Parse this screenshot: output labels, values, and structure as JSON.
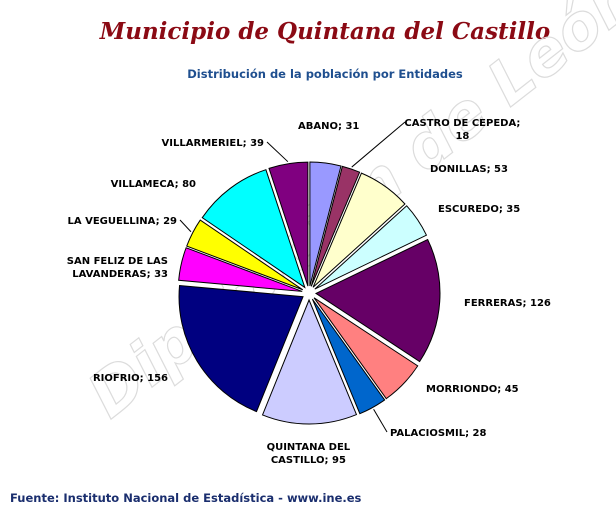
{
  "page": {
    "title": "Municipio de Quintana del Castillo",
    "subtitle": "Distribución de la población por Entidades",
    "source": "Fuente: Instituto Nacional de Estadística - www.ine.es",
    "watermark": "Diputación de León"
  },
  "chart_data": {
    "type": "pie",
    "title": "Distribución de la población por Entidades",
    "start_angle_deg": 0,
    "direction": "clockwise",
    "slices": [
      {
        "label_lines": [
          "ABANO; 31"
        ],
        "name": "ABANO",
        "value": 31,
        "color": "#9999ff"
      },
      {
        "label_lines": [
          "CASTRO DE CEPEDA;",
          "18"
        ],
        "name": "CASTRO DE CEPEDA",
        "value": 18,
        "color": "#993366"
      },
      {
        "label_lines": [
          "DONILLAS; 53"
        ],
        "name": "DONILLAS",
        "value": 53,
        "color": "#ffffcc"
      },
      {
        "label_lines": [
          "ESCUREDO; 35"
        ],
        "name": "ESCUREDO",
        "value": 35,
        "color": "#ccffff"
      },
      {
        "label_lines": [
          "FERRERAS; 126"
        ],
        "name": "FERRERAS",
        "value": 126,
        "color": "#660066"
      },
      {
        "label_lines": [
          "MORRIONDO; 45"
        ],
        "name": "MORRIONDO",
        "value": 45,
        "color": "#ff8080"
      },
      {
        "label_lines": [
          "PALACIOSMIL; 28"
        ],
        "name": "PALACIOSMIL",
        "value": 28,
        "color": "#0066cc"
      },
      {
        "label_lines": [
          "QUINTANA DEL",
          "CASTILLO; 95"
        ],
        "name": "QUINTANA DEL CASTILLO",
        "value": 95,
        "color": "#ccccff"
      },
      {
        "label_lines": [
          "RIOFRIO; 156"
        ],
        "name": "RIOFRIO",
        "value": 156,
        "color": "#000080"
      },
      {
        "label_lines": [
          "SAN FELIZ DE LAS",
          "LAVANDERAS; 33"
        ],
        "name": "SAN FELIZ DE LAS LAVANDERAS",
        "value": 33,
        "color": "#ff00ff"
      },
      {
        "label_lines": [
          "LA VEGUELLINA; 29"
        ],
        "name": "LA VEGUELLINA",
        "value": 29,
        "color": "#ffff00"
      },
      {
        "label_lines": [
          "VILLAMECA; 80"
        ],
        "name": "VILLAMECA",
        "value": 80,
        "color": "#00ffff"
      },
      {
        "label_lines": [
          "VILLARMERIEL; 39"
        ],
        "name": "VILLARMERIEL",
        "value": 39,
        "color": "#800080"
      }
    ]
  }
}
